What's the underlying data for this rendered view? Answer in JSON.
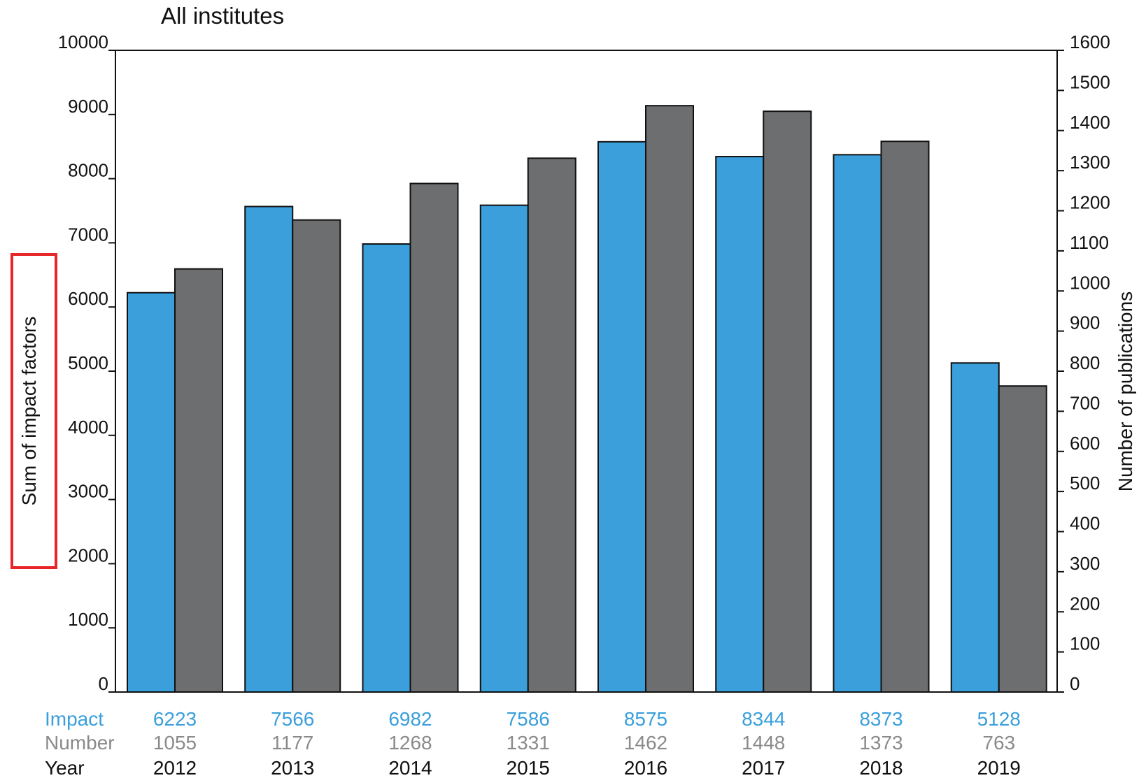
{
  "chart_data": {
    "type": "bar",
    "title": "All institutes",
    "categories": [
      "2012",
      "2013",
      "2014",
      "2015",
      "2016",
      "2017",
      "2018",
      "2019"
    ],
    "series": [
      {
        "name": "Impact",
        "axis": "left",
        "color": "#3a9fdb",
        "values": [
          6223,
          7566,
          6982,
          7586,
          8575,
          8344,
          8373,
          5128
        ]
      },
      {
        "name": "Number",
        "axis": "right",
        "color": "#6d6e70",
        "values": [
          1055,
          1177,
          1268,
          1331,
          1462,
          1448,
          1373,
          763
        ]
      }
    ],
    "ylabel_left": "Sum of impact factors",
    "ylabel_right": "Number of publications",
    "ylim_left": [
      0,
      10000
    ],
    "ylim_right": [
      0,
      1600
    ],
    "yticks_left": [
      0,
      1000,
      2000,
      3000,
      4000,
      5000,
      6000,
      7000,
      8000,
      9000,
      10000
    ],
    "yticks_right": [
      0,
      100,
      200,
      300,
      400,
      500,
      600,
      700,
      800,
      900,
      1000,
      1100,
      1200,
      1300,
      1400,
      1500,
      1600
    ],
    "table_row_labels": {
      "impact": "Impact",
      "number": "Number",
      "year": "Year"
    },
    "grid": false,
    "highlight": {
      "target": "left-axis-label",
      "color": "#e8262a"
    }
  }
}
